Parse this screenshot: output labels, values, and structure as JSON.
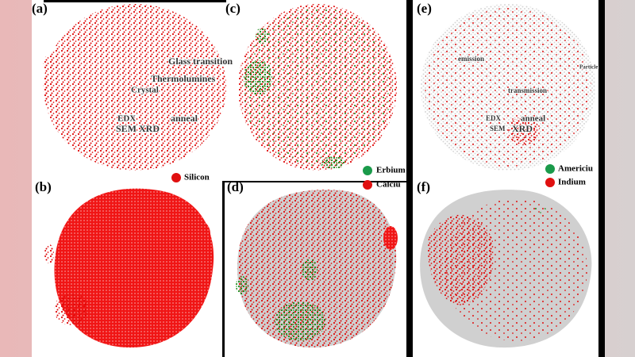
{
  "panels": [
    {
      "label": "(a)",
      "annotations": [
        "Glass transition",
        "Thermolumines",
        "Crystal",
        "anneal",
        "EDX",
        "SEM XRD"
      ],
      "legend": [
        "Silicon"
      ]
    },
    {
      "label": "(b)"
    },
    {
      "label": "(c)",
      "legend": [
        "Erbium",
        "Calciu"
      ]
    },
    {
      "label": "(d)"
    },
    {
      "label": "(e)",
      "annotations": [
        "emission",
        "transmission",
        "EDX",
        "anneal",
        "SEM",
        "XRD",
        "Particle"
      ],
      "legend": [
        "Americiu",
        "Indium"
      ]
    },
    {
      "label": "(f)"
    }
  ]
}
